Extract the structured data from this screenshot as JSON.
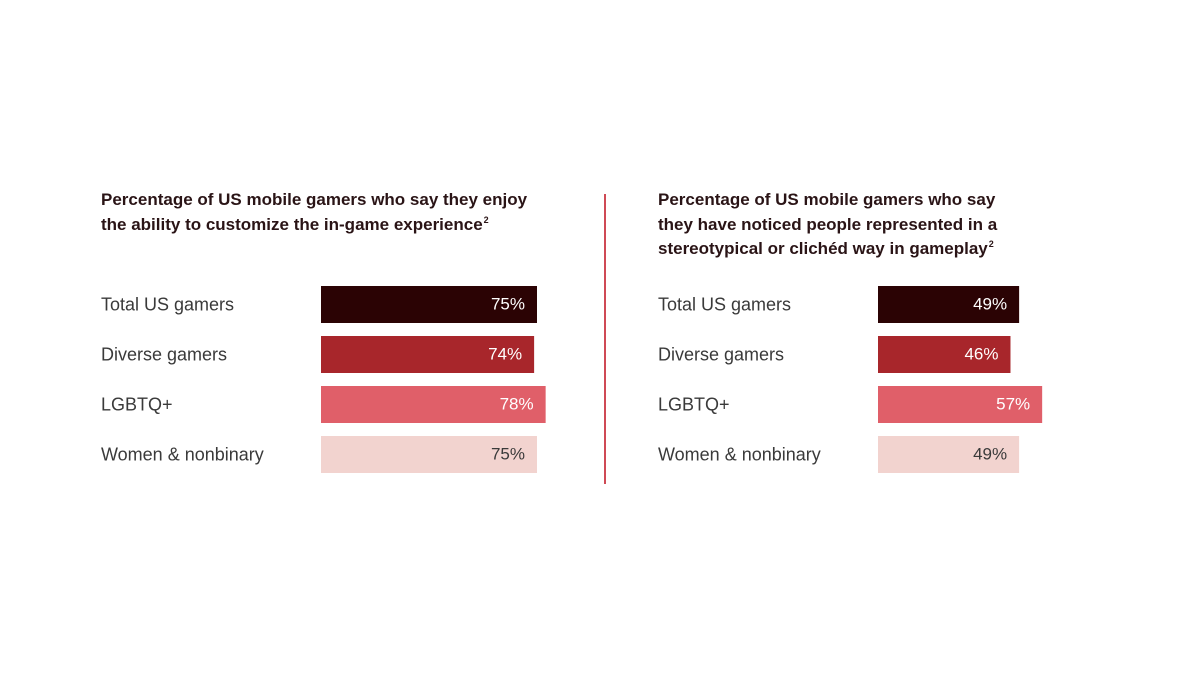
{
  "colors": {
    "divider": "#cf4a55",
    "title": "#2a1416",
    "label": "#3a3a3a"
  },
  "chart_data": [
    {
      "type": "bar",
      "orientation": "horizontal",
      "title_lines": [
        "Percentage of US mobile gamers who say they enjoy",
        "the ability to customize the in-game experience"
      ],
      "title_footnote": "2",
      "categories": [
        "Total US gamers",
        "Diverse gamers",
        "LGBTQ+",
        "Women & nonbinary"
      ],
      "values": [
        75,
        74,
        78,
        75
      ],
      "value_labels": [
        "75%",
        "74%",
        "78%",
        "75%"
      ],
      "bar_colors": [
        "#2b0304",
        "#a8262b",
        "#e05f69",
        "#f2d3cf"
      ],
      "value_label_colors": [
        "#ffffff",
        "#ffffff",
        "#ffffff",
        "#3a3a3a"
      ],
      "xlim": [
        0,
        100
      ],
      "grid": false,
      "axes_visible": false
    },
    {
      "type": "bar",
      "orientation": "horizontal",
      "title_lines": [
        "Percentage of US mobile gamers who say",
        "they have noticed people represented in a",
        "stereotypical or clichéd way in gameplay"
      ],
      "title_footnote": "2",
      "categories": [
        "Total US gamers",
        "Diverse gamers",
        "LGBTQ+",
        "Women & nonbinary"
      ],
      "values": [
        49,
        46,
        57,
        49
      ],
      "value_labels": [
        "49%",
        "46%",
        "57%",
        "49%"
      ],
      "bar_colors": [
        "#2b0304",
        "#a8262b",
        "#e05f69",
        "#f2d3cf"
      ],
      "value_label_colors": [
        "#ffffff",
        "#ffffff",
        "#ffffff",
        "#3a3a3a"
      ],
      "xlim": [
        0,
        100
      ],
      "grid": false,
      "axes_visible": false
    }
  ]
}
